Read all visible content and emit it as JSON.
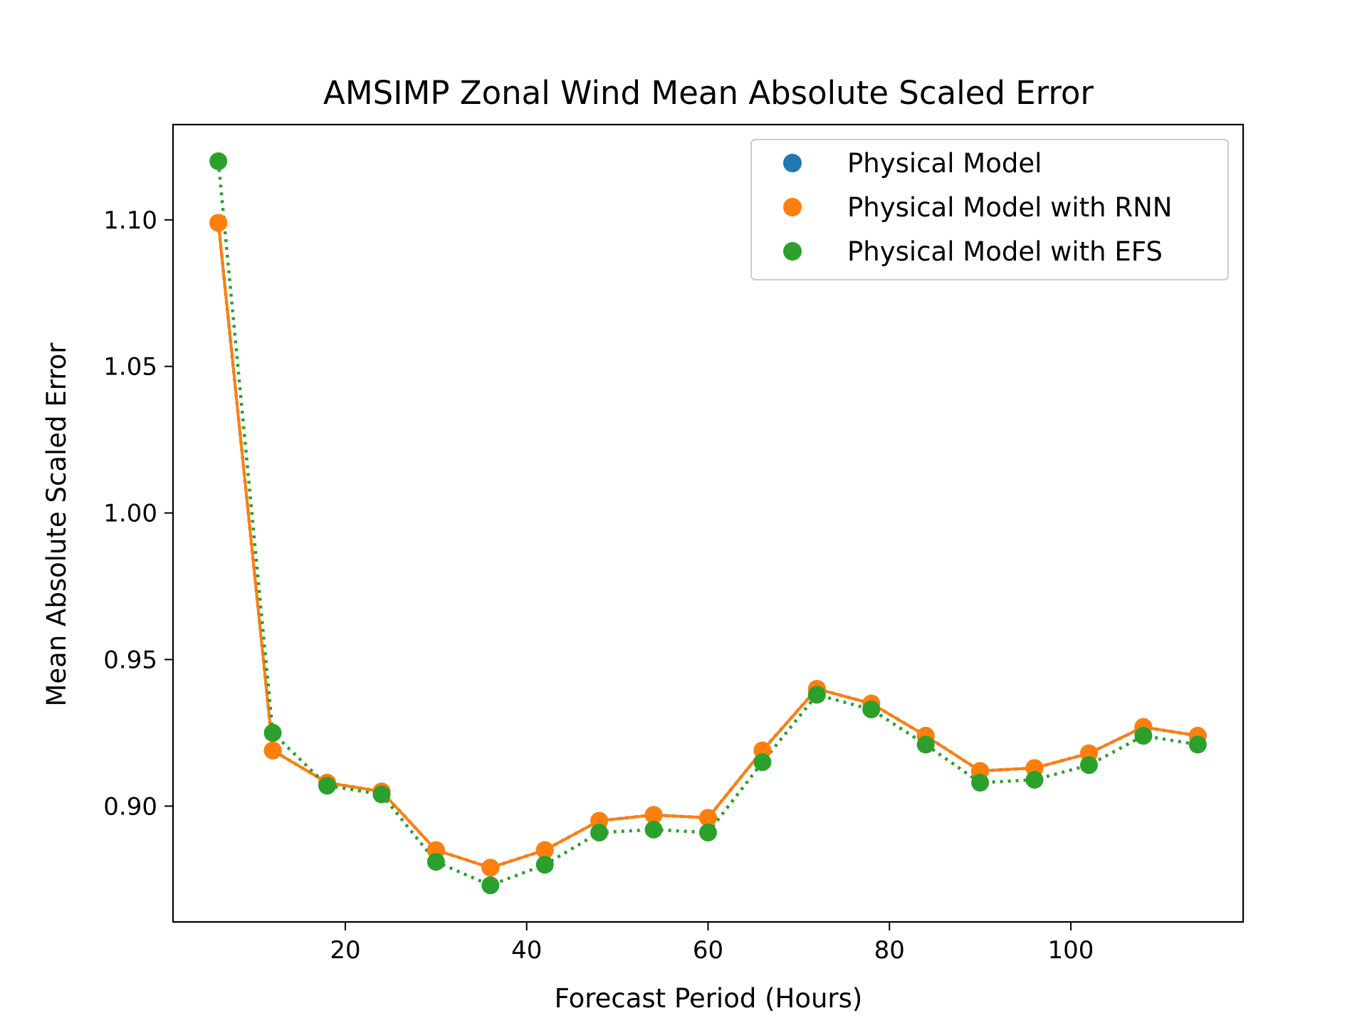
{
  "chart_data": {
    "type": "line",
    "title": "AMSIMP Zonal Wind Mean Absolute Scaled Error",
    "xlabel": "Forecast Period (Hours)",
    "ylabel": "Mean Absolute Scaled Error",
    "xlim": [
      1,
      119
    ],
    "ylim": [
      0.8605,
      1.1325
    ],
    "xticks": [
      20,
      40,
      60,
      80,
      100
    ],
    "yticks": [
      0.9,
      0.95,
      1.0,
      1.05,
      1.1
    ],
    "xtick_labels": [
      "20",
      "40",
      "60",
      "80",
      "100"
    ],
    "ytick_labels": [
      "0.90",
      "0.95",
      "1.00",
      "1.05",
      "1.10"
    ],
    "legend_position": "top-right",
    "grid": false,
    "x": [
      6,
      12,
      18,
      24,
      30,
      36,
      42,
      48,
      54,
      60,
      66,
      72,
      78,
      84,
      90,
      96,
      102,
      108,
      114
    ],
    "series": [
      {
        "name": "Physical Model",
        "color": "#1f77b4",
        "line_style": "dotted",
        "values": [
          1.099,
          0.919,
          0.908,
          0.905,
          0.885,
          0.879,
          0.885,
          0.895,
          0.897,
          0.896,
          0.919,
          0.94,
          0.935,
          0.924,
          0.912,
          0.913,
          0.918,
          0.927,
          0.924
        ]
      },
      {
        "name": "Physical Model with RNN",
        "color": "#ff7f0e",
        "line_style": "solid",
        "values": [
          1.099,
          0.919,
          0.908,
          0.905,
          0.885,
          0.879,
          0.885,
          0.895,
          0.897,
          0.896,
          0.919,
          0.94,
          0.935,
          0.924,
          0.912,
          0.913,
          0.918,
          0.927,
          0.924
        ]
      },
      {
        "name": "Physical Model with EFS",
        "color": "#2ca02c",
        "line_style": "dotted",
        "values": [
          1.12,
          0.925,
          0.907,
          0.904,
          0.881,
          0.873,
          0.88,
          0.891,
          0.892,
          0.891,
          0.915,
          0.938,
          0.933,
          0.921,
          0.908,
          0.909,
          0.914,
          0.924,
          0.921
        ]
      }
    ]
  }
}
